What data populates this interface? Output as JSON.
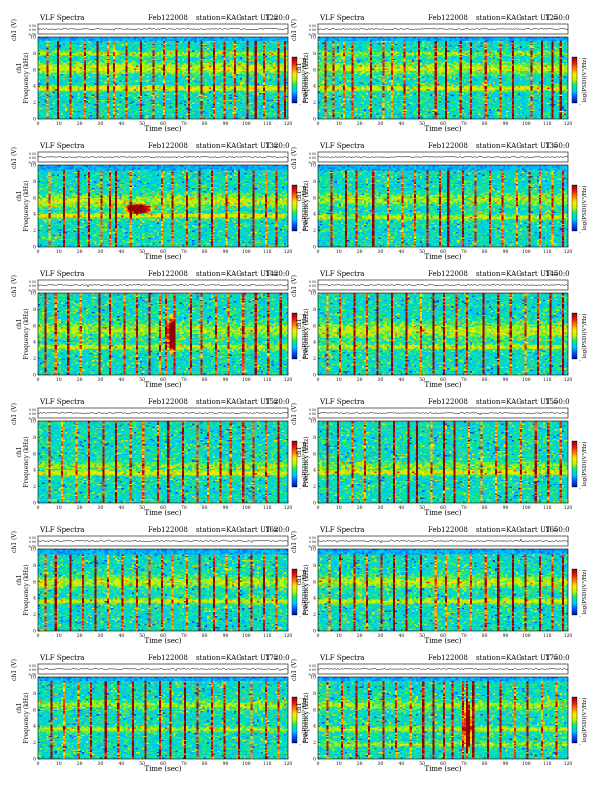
{
  "chart_data": {
    "type": "heatmap",
    "title": "VLF Spectra",
    "date": "Feb122008",
    "station_label": "station=KAG",
    "start_prefix": "start  UT =",
    "xlabel": "Time (sec)",
    "ylabel_top": "ch1",
    "ylabel": "Frequency (kHz)",
    "wave_ylabel": "ch1 (V)",
    "wave_ticks": [
      "0.50",
      "0.00",
      "-0.50"
    ],
    "colorbar_label": "log(PSD)(V²/Hz)",
    "colorbar_tick": "-",
    "colormap": [
      "#0a0a8c",
      "#0050ff",
      "#00c8ff",
      "#00e69a",
      "#b4f000",
      "#ffeb00",
      "#ff7800",
      "#e01414",
      "#8c0000"
    ],
    "xlim": [
      0,
      120
    ],
    "x_ticks": [
      "0",
      "10",
      "20",
      "30",
      "40",
      "50",
      "60",
      "70",
      "80",
      "90",
      "100",
      "110",
      "120"
    ],
    "ylim": [
      0,
      10
    ],
    "y_ticks": [
      "0",
      "2",
      "4",
      "6",
      "8",
      "10"
    ],
    "panels": [
      {
        "start": "1220:0",
        "noise_top_khz": 9.6,
        "bands": [
          {
            "f": 6.2,
            "w": 0.7,
            "a": 0.8
          },
          {
            "f": 3.7,
            "w": 0.3,
            "a": 1.0
          },
          {
            "f": 8.0,
            "w": 0.3,
            "a": 0.6
          }
        ],
        "spikes": [
          4,
          9,
          15,
          22,
          28,
          33,
          36,
          42,
          49,
          55,
          60,
          67,
          73,
          79,
          85,
          90,
          95,
          101,
          105,
          109,
          116,
          119
        ],
        "blobs": []
      },
      {
        "start": "1250:0",
        "noise_top_khz": 9.6,
        "bands": [
          {
            "f": 6.2,
            "w": 0.7,
            "a": 0.7
          },
          {
            "f": 3.7,
            "w": 0.3,
            "a": 0.9
          },
          {
            "f": 8.0,
            "w": 0.3,
            "a": 0.5
          }
        ],
        "spikes": [
          3,
          7,
          12,
          16,
          25,
          31,
          35,
          41,
          48,
          56,
          62,
          69,
          74,
          81,
          88,
          94,
          103,
          108,
          113,
          117
        ],
        "blobs": []
      },
      {
        "start": "1320:0",
        "noise_top_khz": 9.4,
        "bands": [
          {
            "f": 5.6,
            "w": 0.8,
            "a": 0.7
          },
          {
            "f": 3.8,
            "w": 0.3,
            "a": 0.9
          }
        ],
        "spikes": [
          5,
          12,
          19,
          24,
          30,
          34,
          37,
          44,
          59,
          65,
          72,
          78,
          84,
          91,
          97,
          104,
          110,
          115
        ],
        "blobs": [
          {
            "t": 48,
            "f": 4.6,
            "rt": 7,
            "rf": 0.7
          }
        ]
      },
      {
        "start": "1350:0",
        "noise_top_khz": 9.4,
        "bands": [
          {
            "f": 5.8,
            "w": 0.7,
            "a": 0.6
          },
          {
            "f": 3.6,
            "w": 0.3,
            "a": 0.8
          }
        ],
        "spikes": [
          6,
          13,
          18,
          26,
          33,
          40,
          46,
          52,
          58,
          63,
          70,
          76,
          83,
          89,
          96,
          102,
          107,
          113,
          118
        ],
        "blobs": []
      },
      {
        "start": "1420:0",
        "noise_top_khz": 10.0,
        "bands": [
          {
            "f": 5.5,
            "w": 0.9,
            "a": 0.6
          },
          {
            "f": 3.4,
            "w": 0.3,
            "a": 0.8
          }
        ],
        "spikes": [
          3,
          8,
          14,
          20,
          29,
          34,
          41,
          47,
          53,
          58,
          62,
          66,
          74,
          79,
          86,
          92,
          99,
          105,
          111,
          117
        ],
        "blobs": [
          {
            "t": 64,
            "f": 5.0,
            "rt": 2,
            "rf": 2.6
          }
        ]
      },
      {
        "start": "1450:0",
        "noise_top_khz": 10.0,
        "bands": [
          {
            "f": 5.4,
            "w": 1.0,
            "a": 0.7
          },
          {
            "f": 3.4,
            "w": 0.3,
            "a": 0.8
          }
        ],
        "spikes": [
          4,
          10,
          17,
          23,
          28,
          35,
          42,
          49,
          55,
          61,
          67,
          72,
          80,
          87,
          93,
          100,
          106,
          112,
          118
        ],
        "blobs": []
      },
      {
        "start": "1520:0",
        "noise_top_khz": 10.0,
        "bands": [
          {
            "f": 4.5,
            "w": 0.5,
            "a": 0.5
          },
          {
            "f": 3.6,
            "w": 0.3,
            "a": 0.9
          }
        ],
        "spikes": [
          5,
          11,
          18,
          24,
          31,
          37,
          44,
          50,
          57,
          63,
          70,
          77,
          82,
          88,
          93,
          99,
          104,
          110,
          116
        ],
        "blobs": []
      },
      {
        "start": "1550:0",
        "noise_top_khz": 10.0,
        "bands": [
          {
            "f": 4.5,
            "w": 0.5,
            "a": 0.5
          },
          {
            "f": 3.7,
            "w": 0.3,
            "a": 0.9
          }
        ],
        "spikes": [
          4,
          9,
          16,
          22,
          29,
          36,
          43,
          47,
          54,
          60,
          66,
          73,
          79,
          86,
          91,
          98,
          105,
          111,
          117
        ],
        "blobs": []
      },
      {
        "start": "1620:0",
        "noise_top_khz": 9.4,
        "bands": [
          {
            "f": 6.0,
            "w": 0.7,
            "a": 0.7
          },
          {
            "f": 3.6,
            "w": 0.3,
            "a": 0.9
          }
        ],
        "spikes": [
          3,
          8,
          15,
          21,
          27,
          33,
          40,
          47,
          53,
          59,
          65,
          72,
          78,
          85,
          91,
          97,
          103,
          109,
          115
        ],
        "blobs": []
      },
      {
        "start": "1650:0",
        "noise_top_khz": 9.4,
        "bands": [
          {
            "f": 6.0,
            "w": 0.7,
            "a": 0.7
          },
          {
            "f": 3.6,
            "w": 0.3,
            "a": 0.9
          }
        ],
        "spikes": [
          5,
          10,
          17,
          23,
          30,
          36,
          42,
          49,
          56,
          62,
          68,
          74,
          81,
          87,
          94,
          100,
          107,
          113,
          118
        ],
        "blobs": []
      },
      {
        "start": "1720:0",
        "noise_top_khz": 9.6,
        "bands": [
          {
            "f": 6.6,
            "w": 0.5,
            "a": 0.6
          },
          {
            "f": 3.6,
            "w": 0.3,
            "a": 0.7
          }
        ],
        "spikes": [
          6,
          12,
          19,
          25,
          32,
          38,
          45,
          51,
          58,
          64,
          71,
          77,
          84,
          90,
          97,
          103,
          110,
          116
        ],
        "blobs": []
      },
      {
        "start": "1750:0",
        "noise_top_khz": 9.6,
        "bands": [
          {
            "f": 6.6,
            "w": 0.5,
            "a": 0.6
          },
          {
            "f": 3.6,
            "w": 0.3,
            "a": 0.7
          },
          {
            "f": 1.7,
            "w": 0.3,
            "a": 0.6
          }
        ],
        "spikes": [
          4,
          11,
          18,
          24,
          31,
          37,
          44,
          50,
          55,
          60,
          65,
          70,
          72,
          75,
          82,
          88,
          95,
          101,
          108,
          115
        ],
        "blobs": [
          {
            "t": 72,
            "f": 4.0,
            "rt": 2,
            "rf": 3.5
          }
        ]
      }
    ]
  }
}
